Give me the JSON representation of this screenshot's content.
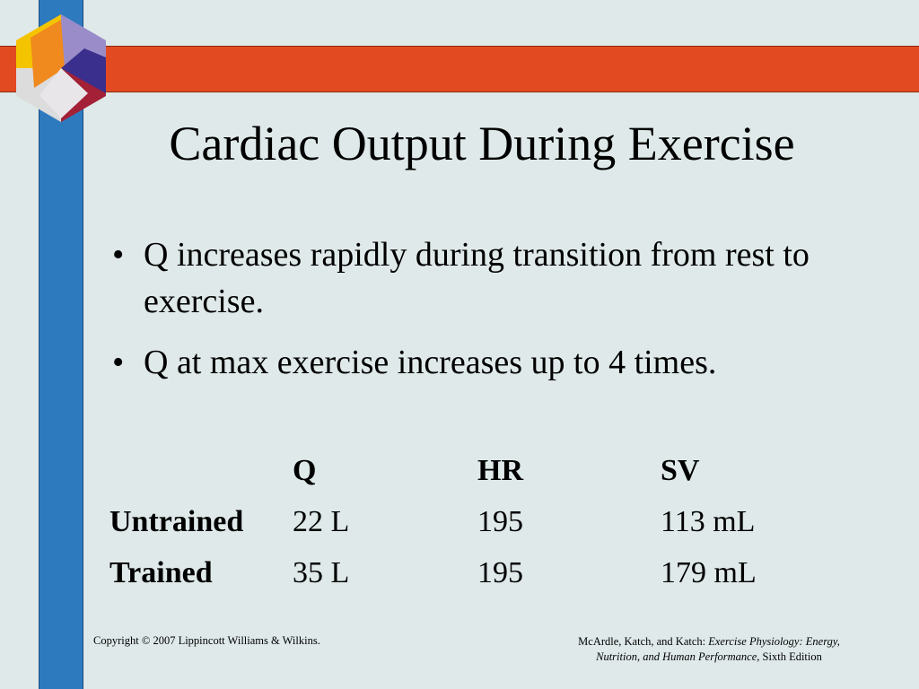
{
  "slide": {
    "title": "Cardiac Output During Exercise",
    "bullets": [
      "Q increases rapidly during transition from rest to exercise.",
      "Q at max exercise increases up to 4 times."
    ],
    "bullet_glyph": "•"
  },
  "table": {
    "headers": [
      "",
      "Q",
      "HR",
      "SV"
    ],
    "rows": [
      {
        "label": "Untrained",
        "q": "22 L",
        "hr": "195",
        "sv": "113 mL"
      },
      {
        "label": "Trained",
        "q": "35 L",
        "hr": "195",
        "sv": "179 mL"
      }
    ]
  },
  "footer": {
    "copyright": "Copyright © 2007 Lippincott Williams & Wilkins.",
    "citation_authors": "McArdle, Katch, and Katch: ",
    "citation_title_1": "Exercise Physiology: Energy,",
    "citation_title_2": "Nutrition, and Human Performance,",
    "citation_edition": " Sixth Edition"
  },
  "colors": {
    "background": "#dfe9e9",
    "vertical_bar": "#2e7abf",
    "horizontal_bar": "#e24a22"
  },
  "icons": {
    "logo": "hexagon-cube-logo-icon"
  }
}
